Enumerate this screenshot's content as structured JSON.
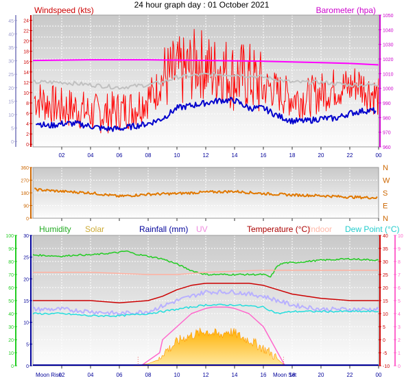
{
  "title": "24 hour graph day : 01 October 2021",
  "x_ticks": [
    "02",
    "04",
    "06",
    "08",
    "10",
    "12",
    "14",
    "16",
    "18",
    "20",
    "22",
    "00"
  ],
  "colors": {
    "wind": "#ff0000",
    "gust_avg": "#c0c0c0",
    "avg_wind": "#0000cc",
    "baro": "#ff00ff",
    "dir": "#e07800",
    "humidity": "#22cc22",
    "solar": "#ffaa00",
    "rain": "#000099",
    "uv": "#ff66cc",
    "temp": "#cc0000",
    "indoor": "#ffb0a0",
    "dew": "#22dddd",
    "lavender": "#b8b0ff"
  },
  "chart_data": [
    {
      "type": "line",
      "name": "wind",
      "left_label": "Windspeed (kts)",
      "right_label": "Barometer (hpa)",
      "left_ticks_outer": [
        "0",
        "5",
        "10",
        "15",
        "20",
        "25",
        "30",
        "35",
        "40",
        "45"
      ],
      "left_ticks_inner": [
        "0",
        "2",
        "4",
        "6",
        "8",
        "10",
        "12",
        "14",
        "16",
        "18",
        "20",
        "22",
        "24"
      ],
      "right_ticks": [
        "960",
        "970",
        "980",
        "990",
        "1000",
        "1010",
        "1020",
        "1030",
        "1040",
        "1050"
      ],
      "ylim_kts": [
        -0.5,
        25
      ],
      "ylim_hpa": [
        960,
        1050
      ],
      "series": [
        {
          "key": "wind",
          "x": [
            0,
            1,
            2,
            3,
            4,
            5,
            6,
            7,
            8,
            8.5,
            9,
            9.5,
            10,
            10.5,
            11,
            11.5,
            12,
            12.5,
            13,
            13.5,
            14,
            14.5,
            15,
            15.5,
            16,
            16.5,
            17,
            18,
            19,
            20,
            21,
            22,
            22.5,
            23,
            23.5,
            24
          ],
          "y": [
            9,
            8,
            7,
            7,
            6,
            6,
            6.5,
            7,
            9,
            10,
            13,
            13,
            14,
            14,
            15,
            16,
            15,
            14,
            15,
            14,
            13,
            13,
            13,
            12,
            11,
            11,
            10,
            9,
            9,
            10,
            11,
            11,
            12,
            11,
            10,
            9
          ]
        },
        {
          "key": "gust_avg",
          "x": [
            0,
            2,
            4,
            6,
            8,
            9,
            10,
            12,
            14,
            16,
            18,
            20,
            22,
            24
          ],
          "y": [
            12,
            12,
            11.5,
            11,
            11.5,
            12,
            13,
            13.5,
            13.5,
            13,
            12,
            12,
            11.5,
            11.5
          ]
        },
        {
          "key": "avg_wind",
          "x": [
            0,
            1,
            2,
            3,
            4,
            5,
            6,
            7,
            8,
            9,
            10,
            11,
            12,
            13,
            14,
            15,
            16,
            17,
            18,
            19,
            20,
            21,
            22,
            23,
            24
          ],
          "y": [
            4.5,
            3.5,
            4,
            4,
            3.5,
            3,
            3,
            3.5,
            4,
            5,
            7,
            7.5,
            8,
            8.5,
            8.5,
            7,
            7,
            5.5,
            4.5,
            4.5,
            5,
            5,
            6,
            6.5,
            6.5
          ]
        },
        {
          "key": "baro",
          "x": [
            0,
            4,
            8,
            12,
            16,
            20,
            22,
            24
          ],
          "y": [
            1019,
            1019.5,
            1019.5,
            1019,
            1018.5,
            1017.5,
            1017,
            1016
          ]
        }
      ]
    },
    {
      "type": "line",
      "name": "direction",
      "left_ticks": [
        "0",
        "90",
        "180",
        "270",
        "360"
      ],
      "right_labels": [
        "N",
        "W",
        "S",
        "E",
        "N"
      ],
      "ylim": [
        0,
        360
      ],
      "series": [
        {
          "key": "dir",
          "x": [
            0,
            2,
            4,
            6,
            8,
            10,
            12,
            14,
            16,
            18,
            20,
            22,
            24
          ],
          "y": [
            205,
            190,
            180,
            155,
            170,
            175,
            185,
            190,
            175,
            165,
            160,
            150,
            145
          ]
        }
      ]
    },
    {
      "type": "line",
      "name": "temperature",
      "legend": [
        "Humidity",
        "Solar",
        "Rainfall (mm)",
        "UV",
        "Temperature (°C)",
        "Indoor",
        "Dew Point (°C)"
      ],
      "humidity_ticks": [
        "0",
        "10",
        "20",
        "30",
        "40",
        "50",
        "60",
        "70",
        "80",
        "90",
        "100"
      ],
      "rain_ticks": [
        "0",
        "5",
        "10",
        "15",
        "20",
        "25",
        "30"
      ],
      "temp_ticks": [
        "-10",
        "-5",
        "0",
        "5",
        "10",
        "15",
        "20",
        "25",
        "30",
        "35",
        "40"
      ],
      "uv_ticks": [
        "0",
        "1",
        "2",
        "3",
        "4",
        "5",
        "6",
        "7",
        "8",
        "9",
        "10"
      ],
      "moon_labels": [
        "Moon Rise",
        "Moon Set"
      ],
      "series": [
        {
          "key": "humidity",
          "x": [
            0,
            2,
            3,
            4,
            5,
            6,
            6.5,
            7,
            8,
            9,
            10,
            11,
            12,
            13,
            14,
            15,
            16,
            16.5,
            17,
            17.5,
            18,
            20,
            22,
            24
          ],
          "y": [
            85,
            84,
            85,
            85,
            86,
            87,
            88,
            86,
            84,
            82,
            78,
            73,
            70,
            70,
            70,
            70,
            70,
            68,
            77,
            79,
            79,
            81,
            82,
            81
          ]
        },
        {
          "key": "indoor",
          "x": [
            0,
            4,
            8,
            10,
            12,
            16,
            20,
            24
          ],
          "y": [
            21.5,
            21.5,
            21,
            21,
            21.5,
            22,
            22,
            22
          ]
        },
        {
          "key": "temp",
          "x": [
            0,
            2,
            4,
            6,
            8,
            9,
            10,
            11,
            12,
            13,
            14,
            15,
            16,
            17,
            18,
            20,
            22,
            24
          ],
          "y": [
            15,
            15,
            15,
            14.5,
            15,
            16,
            17.5,
            18.5,
            19,
            19,
            19,
            19,
            18.5,
            17.5,
            16.5,
            15.5,
            15,
            15
          ]
        },
        {
          "key": "lavender",
          "x": [
            0,
            2,
            4,
            6,
            8,
            10,
            12,
            14,
            16,
            18,
            20,
            22,
            24
          ],
          "y": [
            13,
            13,
            12.5,
            12,
            12.5,
            15,
            17,
            17,
            16,
            14,
            13,
            13,
            13
          ]
        },
        {
          "key": "dew",
          "x": [
            0,
            2,
            4,
            6,
            8,
            10,
            12,
            14,
            16,
            17,
            18,
            20,
            22,
            24
          ],
          "y": [
            12,
            12,
            11.5,
            11.5,
            12,
            13,
            14,
            14,
            13.5,
            12,
            12.5,
            12.5,
            12.5,
            12.5
          ]
        },
        {
          "key": "solar",
          "x": [
            7,
            8,
            8.8,
            9,
            9.5,
            10,
            10.5,
            11,
            11.5,
            12,
            12.5,
            13,
            13.5,
            14,
            14.5,
            15,
            15.5,
            16,
            16.5,
            17,
            17.5
          ],
          "y": [
            0,
            0.5,
            1.5,
            3,
            4,
            5.5,
            6.5,
            7,
            7.5,
            8,
            7.5,
            7,
            8,
            7.5,
            6.5,
            6,
            5,
            4,
            3,
            1.5,
            0
          ]
        },
        {
          "key": "uv",
          "x": [
            7.5,
            8.8,
            9,
            9.5,
            10,
            10.5,
            11,
            11.5,
            12,
            12.5,
            13,
            13.5,
            14,
            14.5,
            15,
            15.5,
            16,
            16.5,
            17,
            17.5
          ],
          "y": [
            0,
            1,
            2,
            2.5,
            3,
            3.5,
            4,
            4.2,
            4.4,
            4.5,
            4.5,
            4.5,
            4.4,
            4.2,
            4,
            3.5,
            3,
            2,
            1,
            0
          ]
        }
      ]
    }
  ]
}
